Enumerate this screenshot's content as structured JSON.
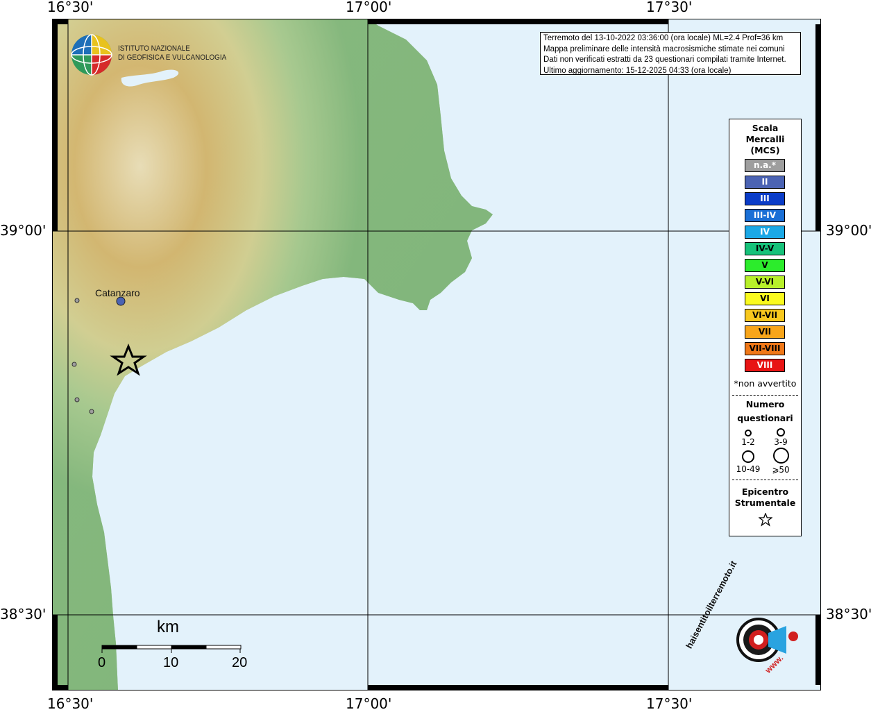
{
  "frame_labels": {
    "lon_left": "16°30'",
    "lon_mid": "17°00'",
    "lon_right": "17°30'",
    "lat_upper": "39°00'",
    "lat_lower": "38°30'"
  },
  "colors": {
    "sea": "#e3f2fb",
    "land_low": "#8fbf7f",
    "land_high": "#c9a05c",
    "grid": "#000000"
  },
  "ingv_logo": {
    "line1": "ISTITUTO NAZIONALE",
    "line2": "DI GEOFISICA E VULCANOLOGIA"
  },
  "info": {
    "line1": "Terremoto del 13-10-2022 03:36:00 (ora locale) ML=2.4 Prof=36 km",
    "line2": "Mappa preliminare delle intensità macrosismiche stimate nei comuni",
    "line3": "Dati non verificati estratti da 23 questionari compilati tramite Internet.",
    "line4": "Ultimo aggiornamento: 15-12-2025 04:33 (ora locale)"
  },
  "city": {
    "name": "Catanzaro"
  },
  "legend": {
    "title1": "Scala",
    "title2": "Mercalli",
    "title3": "(MCS)",
    "intensities": [
      {
        "label": "n.a.*",
        "color": "#9e9e9e",
        "text_color": "#ffffff"
      },
      {
        "label": "II",
        "color": "#4b63b3",
        "text_color": "#ffffff"
      },
      {
        "label": "III",
        "color": "#0a3cc8",
        "text_color": "#ffffff"
      },
      {
        "label": "III-IV",
        "color": "#1a6fd6",
        "text_color": "#ffffff"
      },
      {
        "label": "IV",
        "color": "#1ba8e6",
        "text_color": "#ffffff"
      },
      {
        "label": "IV-V",
        "color": "#17c27a",
        "text_color": "#000000"
      },
      {
        "label": "V",
        "color": "#2cec2c",
        "text_color": "#000000"
      },
      {
        "label": "V-VI",
        "color": "#b8f02a",
        "text_color": "#000000"
      },
      {
        "label": "VI",
        "color": "#fafa1e",
        "text_color": "#000000"
      },
      {
        "label": "VI-VII",
        "color": "#f8c81e",
        "text_color": "#000000"
      },
      {
        "label": "VII",
        "color": "#f8a51a",
        "text_color": "#000000"
      },
      {
        "label": "VII-VIII",
        "color": "#f07818",
        "text_color": "#000000"
      },
      {
        "label": "VIII",
        "color": "#e81414",
        "text_color": "#ffffff"
      }
    ],
    "note": "*non avvertito",
    "count_title1": "Numero",
    "count_title2": "questionari",
    "sizes": [
      "1-2",
      "3-9",
      "10-49",
      "⩾50"
    ],
    "epicenter_title1": "Epicentro",
    "epicenter_title2": "Strumentale"
  },
  "scale_bar": {
    "unit": "km",
    "ticks": [
      "0",
      "10",
      "20"
    ]
  },
  "haisentito": {
    "text": "haisentitoilterremoto.it",
    "www": "www."
  }
}
